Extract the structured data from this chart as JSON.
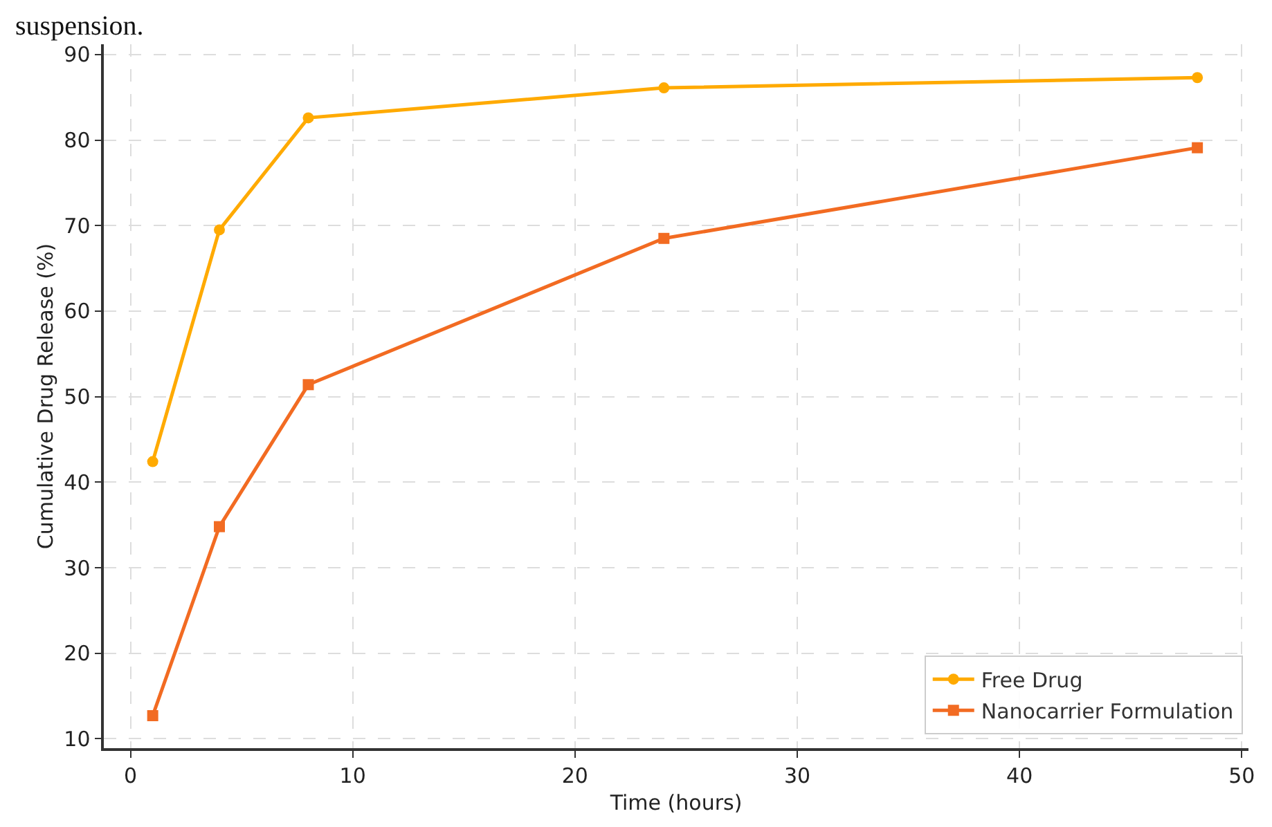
{
  "chart_data": {
    "type": "line",
    "xlabel": "Time (hours)",
    "ylabel": "Cumulative Drug Release (%)",
    "annotations": [
      "suspension."
    ],
    "x": [
      1,
      4,
      8,
      24,
      48
    ],
    "series": [
      {
        "name": "Free Drug",
        "color": "#ffaa00",
        "marker": "circle",
        "values": [
          42.4,
          69.5,
          82.6,
          86.1,
          87.3
        ]
      },
      {
        "name": "Nanocarrier Formulation",
        "color": "#f26b22",
        "marker": "square",
        "values": [
          12.7,
          34.8,
          51.4,
          68.5,
          79.1
        ]
      }
    ],
    "xlim": [
      -1.2,
      50.3
    ],
    "xticks": [
      0,
      10,
      20,
      30,
      40,
      50
    ],
    "ylim": [
      8.9,
      91.2
    ],
    "yticks": [
      10,
      20,
      30,
      40,
      50,
      60,
      70,
      80,
      90
    ],
    "grid": true,
    "legend": "bottom right",
    "line_style": "solid"
  }
}
